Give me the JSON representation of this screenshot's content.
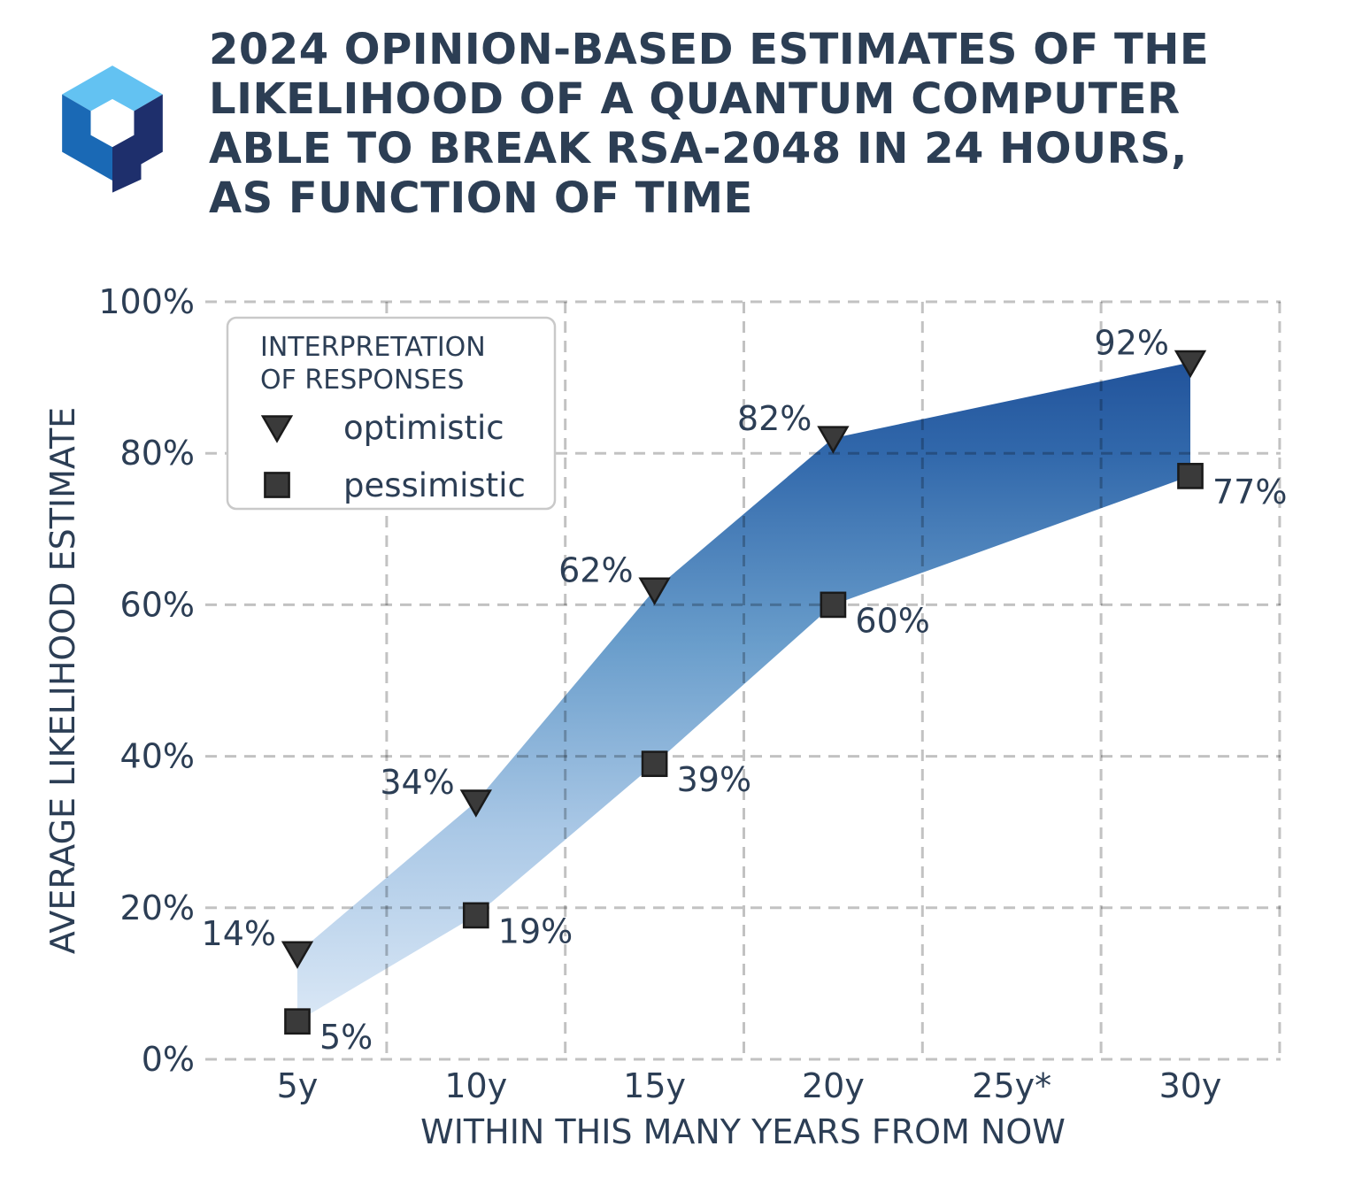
{
  "header": {
    "title_lines": [
      "2024 OPINION-BASED ESTIMATES OF THE",
      "LIKELIHOOD OF A QUANTUM COMPUTER",
      "ABLE TO BREAK RSA-2048 IN 24 HOURS,",
      "AS FUNCTION OF TIME"
    ],
    "logo": {
      "name": "hexagonal-q-logo",
      "colors": {
        "top_face": "#63c2f2",
        "left_face": "#1a69b5",
        "right_face": "#1e2f6c",
        "center": "#ffffff"
      }
    }
  },
  "chart_data": {
    "type": "area",
    "title": "2024 opinion-based estimates of the likelihood of a quantum computer able to break RSA-2048 in 24 hours, as function of time",
    "xlabel": "WITHIN THIS MANY YEARS FROM NOW",
    "ylabel": "AVERAGE LIKELIHOOD ESTIMATE",
    "x": [
      5,
      10,
      15,
      20,
      30
    ],
    "series": [
      {
        "name": "optimistic",
        "marker": "triangle-down",
        "values": [
          14,
          34,
          62,
          82,
          92
        ],
        "labels": [
          "14%",
          "34%",
          "62%",
          "82%",
          "92%"
        ],
        "label_side": "left"
      },
      {
        "name": "pessimistic",
        "marker": "square",
        "values": [
          5,
          19,
          39,
          60,
          77
        ],
        "labels": [
          "5%",
          "19%",
          "39%",
          "60%",
          "77%"
        ],
        "label_side": "right"
      }
    ],
    "x_ticks": [
      {
        "label": "5y",
        "value": 5
      },
      {
        "label": "10y",
        "value": 10
      },
      {
        "label": "15y",
        "value": 15
      },
      {
        "label": "20y",
        "value": 20
      },
      {
        "label": "25y*",
        "value": 25
      },
      {
        "label": "30y",
        "value": 30
      }
    ],
    "y_ticks": [
      {
        "label": "0%",
        "value": 0
      },
      {
        "label": "20%",
        "value": 20
      },
      {
        "label": "40%",
        "value": 40
      },
      {
        "label": "60%",
        "value": 60
      },
      {
        "label": "80%",
        "value": 80
      },
      {
        "label": "100%",
        "value": 100
      }
    ],
    "ylim": [
      0,
      100
    ],
    "grid": {
      "style": "dashed",
      "horizontal_at": [
        0,
        20,
        40,
        60,
        80,
        100
      ],
      "vertical_at_years": [
        7.5,
        12.5,
        17.5,
        22.5,
        27.5,
        32.5
      ]
    },
    "legend": {
      "position": "upper-left",
      "title_lines": [
        "INTERPRETATION",
        "OF RESPONSES"
      ],
      "entries": [
        {
          "marker": "triangle-down",
          "label": "optimistic"
        },
        {
          "marker": "square",
          "label": "pessimistic"
        }
      ]
    },
    "band_gradient": [
      {
        "offset": 0,
        "color": "#e4eef9"
      },
      {
        "offset": 0.3,
        "color": "#aac8e6"
      },
      {
        "offset": 0.55,
        "color": "#699dcb"
      },
      {
        "offset": 0.8,
        "color": "#3168ab"
      },
      {
        "offset": 1,
        "color": "#174590"
      }
    ],
    "colors": {
      "text": "#2c3e55",
      "marker_fill": "#3a3a3a",
      "marker_edge": "#1a1a1a",
      "gridline": "rgba(0,0,0,0.24)",
      "legend_border": "#c9c9c9",
      "legend_fill": "#ffffff"
    }
  }
}
